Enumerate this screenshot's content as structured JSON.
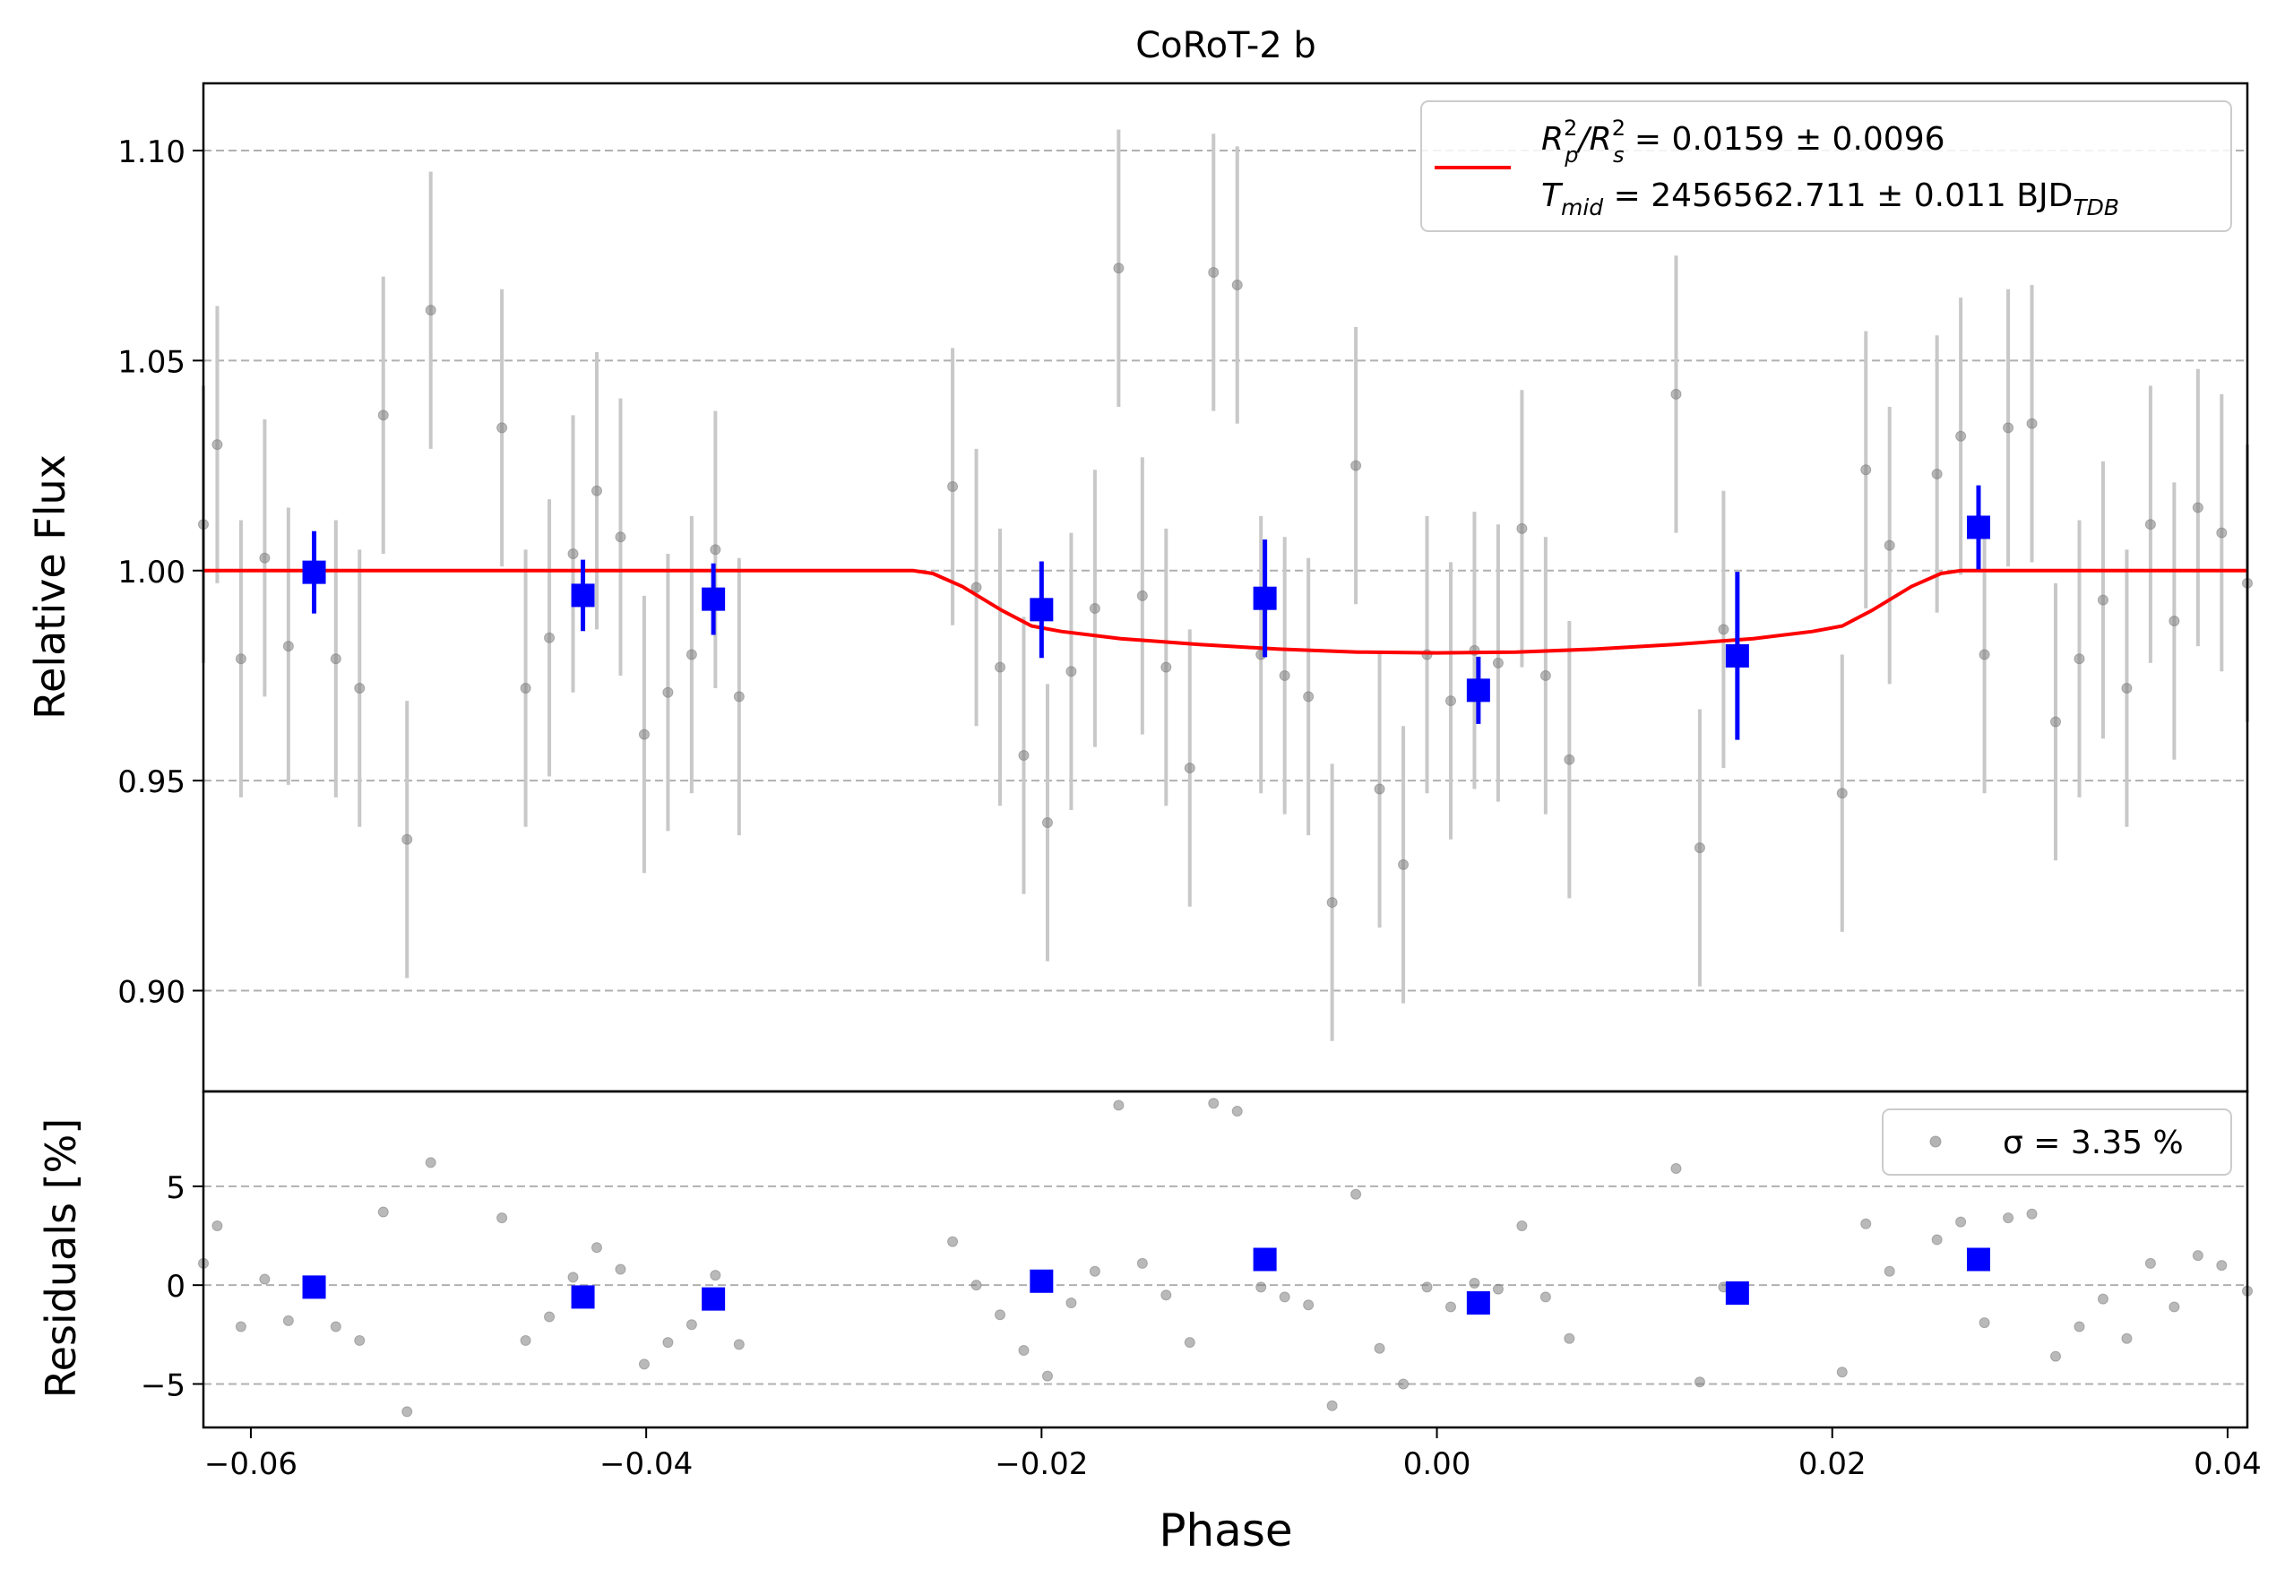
{
  "chart_data": {
    "type": "scatter",
    "title": "CoRoT-2 b",
    "xlabel": "Phase",
    "xlim": [
      -0.0624,
      0.041
    ],
    "grid": "horizontal dashed",
    "panels": {
      "top": {
        "ylabel": "Relative Flux",
        "ylim": [
          0.876,
          1.116
        ],
        "yticks": [
          0.9,
          0.95,
          1.0,
          1.05,
          1.1
        ],
        "ytick_labels": [
          "0.90",
          "0.95",
          "1.00",
          "1.05",
          "1.10"
        ],
        "legend": {
          "placement": "upper right",
          "line1": {
            "base": "R",
            "sup1": "2",
            "sub1": "p",
            "slash": "/R",
            "sup2": "2",
            "sub2": "s",
            "rest": " = 0.0159 ± 0.0096"
          },
          "line2": {
            "base": "T",
            "sub": "mid",
            "rest": " = 2456562.711 ± 0.011 BJD",
            "sub2": "TDB"
          }
        }
      },
      "bottom": {
        "ylabel": "Residuals [%]",
        "ylim": [
          -7.2,
          9.8
        ],
        "yticks": [
          -5,
          0,
          5
        ],
        "ytick_labels": [
          "−5",
          "0",
          "5"
        ],
        "legend": {
          "placement": "upper right",
          "sigma_text": "σ = 3.35 %"
        }
      }
    },
    "xticks": [
      -0.06,
      -0.04,
      -0.02,
      0.0,
      0.02,
      0.04
    ],
    "xtick_labels": [
      "−0.06",
      "−0.04",
      "−0.02",
      "0.00",
      "0.02",
      "0.04"
    ],
    "model": {
      "name": "transit model",
      "color": "#ff0000",
      "x": [
        -0.0624,
        -0.0265,
        -0.0255,
        -0.024,
        -0.022,
        -0.0205,
        -0.019,
        -0.016,
        -0.012,
        -0.008,
        -0.004,
        0.0,
        0.004,
        0.008,
        0.012,
        0.016,
        0.019,
        0.0205,
        0.022,
        0.024,
        0.0255,
        0.0265,
        0.041
      ],
      "y": [
        1.0,
        1.0,
        0.9993,
        0.9962,
        0.9905,
        0.9868,
        0.9855,
        0.9838,
        0.9824,
        0.9813,
        0.9806,
        0.9804,
        0.9806,
        0.9813,
        0.9824,
        0.9838,
        0.9855,
        0.9868,
        0.9905,
        0.9962,
        0.9993,
        1.0,
        1.0
      ]
    },
    "data_points": {
      "color": "#808080",
      "x": [
        -0.0625,
        -0.0617,
        -0.0605,
        -0.0593,
        -0.0581,
        -0.0557,
        -0.0545,
        -0.0533,
        -0.0521,
        -0.0509,
        -0.0473,
        -0.0461,
        -0.0449,
        -0.0437,
        -0.0425,
        -0.0413,
        -0.0401,
        -0.0389,
        -0.0377,
        -0.0365,
        -0.0353,
        -0.0245,
        -0.0233,
        -0.0221,
        -0.0209,
        -0.0197,
        -0.0185,
        -0.0173,
        -0.0161,
        -0.0149,
        -0.0137,
        -0.0125,
        -0.0113,
        -0.0101,
        -0.0089,
        -0.0077,
        -0.0065,
        -0.0053,
        -0.0041,
        -0.0029,
        -0.0017,
        -0.0005,
        0.0007,
        0.0019,
        0.0031,
        0.0043,
        0.0055,
        0.0067,
        0.0121,
        0.0133,
        0.0145,
        0.0205,
        0.0217,
        0.0229,
        0.0253,
        0.0265,
        0.0277,
        0.0289,
        0.0301,
        0.0313,
        0.0325,
        0.0337,
        0.0349,
        0.0361,
        0.0373,
        0.0385,
        0.0397,
        0.041
      ],
      "y": [
        1.011,
        1.03,
        0.979,
        1.003,
        0.982,
        0.979,
        0.972,
        1.037,
        0.936,
        1.062,
        1.034,
        0.972,
        0.984,
        1.004,
        1.019,
        1.008,
        0.961,
        0.971,
        0.98,
        1.005,
        0.97,
        1.02,
        0.996,
        0.977,
        0.956,
        0.94,
        0.976,
        0.991,
        1.072,
        0.994,
        0.977,
        0.953,
        1.071,
        1.068,
        0.98,
        0.975,
        0.97,
        0.921,
        1.025,
        0.948,
        0.93,
        0.98,
        0.969,
        0.981,
        0.978,
        1.01,
        0.975,
        0.955,
        1.042,
        0.934,
        0.986,
        0.947,
        1.024,
        1.006,
        1.023,
        1.032,
        0.98,
        1.034,
        1.035,
        0.964,
        0.979,
        0.993,
        0.972,
        1.011,
        0.988,
        1.015,
        1.009,
        0.997
      ],
      "yerr": 0.033,
      "residuals": [
        1.1,
        3.0,
        -2.1,
        0.3,
        -1.8,
        -2.1,
        -2.8,
        3.7,
        -6.4,
        6.2,
        3.4,
        -2.8,
        -1.6,
        0.4,
        1.9,
        0.8,
        -4.0,
        -2.9,
        -2.0,
        0.5,
        -3.0,
        2.2,
        0.0,
        -1.5,
        -3.3,
        -4.6,
        -0.9,
        0.7,
        9.1,
        1.1,
        -0.5,
        -2.9,
        9.2,
        8.8,
        -0.1,
        -0.6,
        -1.0,
        -6.1,
        4.6,
        -3.2,
        -5.0,
        -0.1,
        -1.1,
        0.1,
        -0.2,
        3.0,
        -0.6,
        -2.7,
        5.9,
        -4.9,
        -0.1,
        -4.4,
        3.1,
        0.7,
        2.3,
        3.2,
        -1.9,
        3.4,
        3.6,
        -3.6,
        -2.1,
        -0.7,
        -2.7,
        1.1,
        -1.1,
        1.5,
        1.0,
        -0.3
      ]
    },
    "binned": {
      "color": "#0000ff",
      "x": [
        -0.0568,
        -0.0432,
        -0.0366,
        -0.02,
        -0.0087,
        0.0021,
        0.0152,
        0.0274
      ],
      "y": [
        0.9996,
        0.9941,
        0.9932,
        0.9907,
        0.9934,
        0.9715,
        0.9797,
        1.0103
      ],
      "yerr": [
        0.0098,
        0.0085,
        0.0085,
        0.0115,
        0.014,
        0.008,
        0.02,
        0.01
      ],
      "residuals": [
        -0.1,
        -0.6,
        -0.7,
        0.2,
        1.3,
        -0.9,
        -0.4,
        1.3
      ]
    }
  }
}
